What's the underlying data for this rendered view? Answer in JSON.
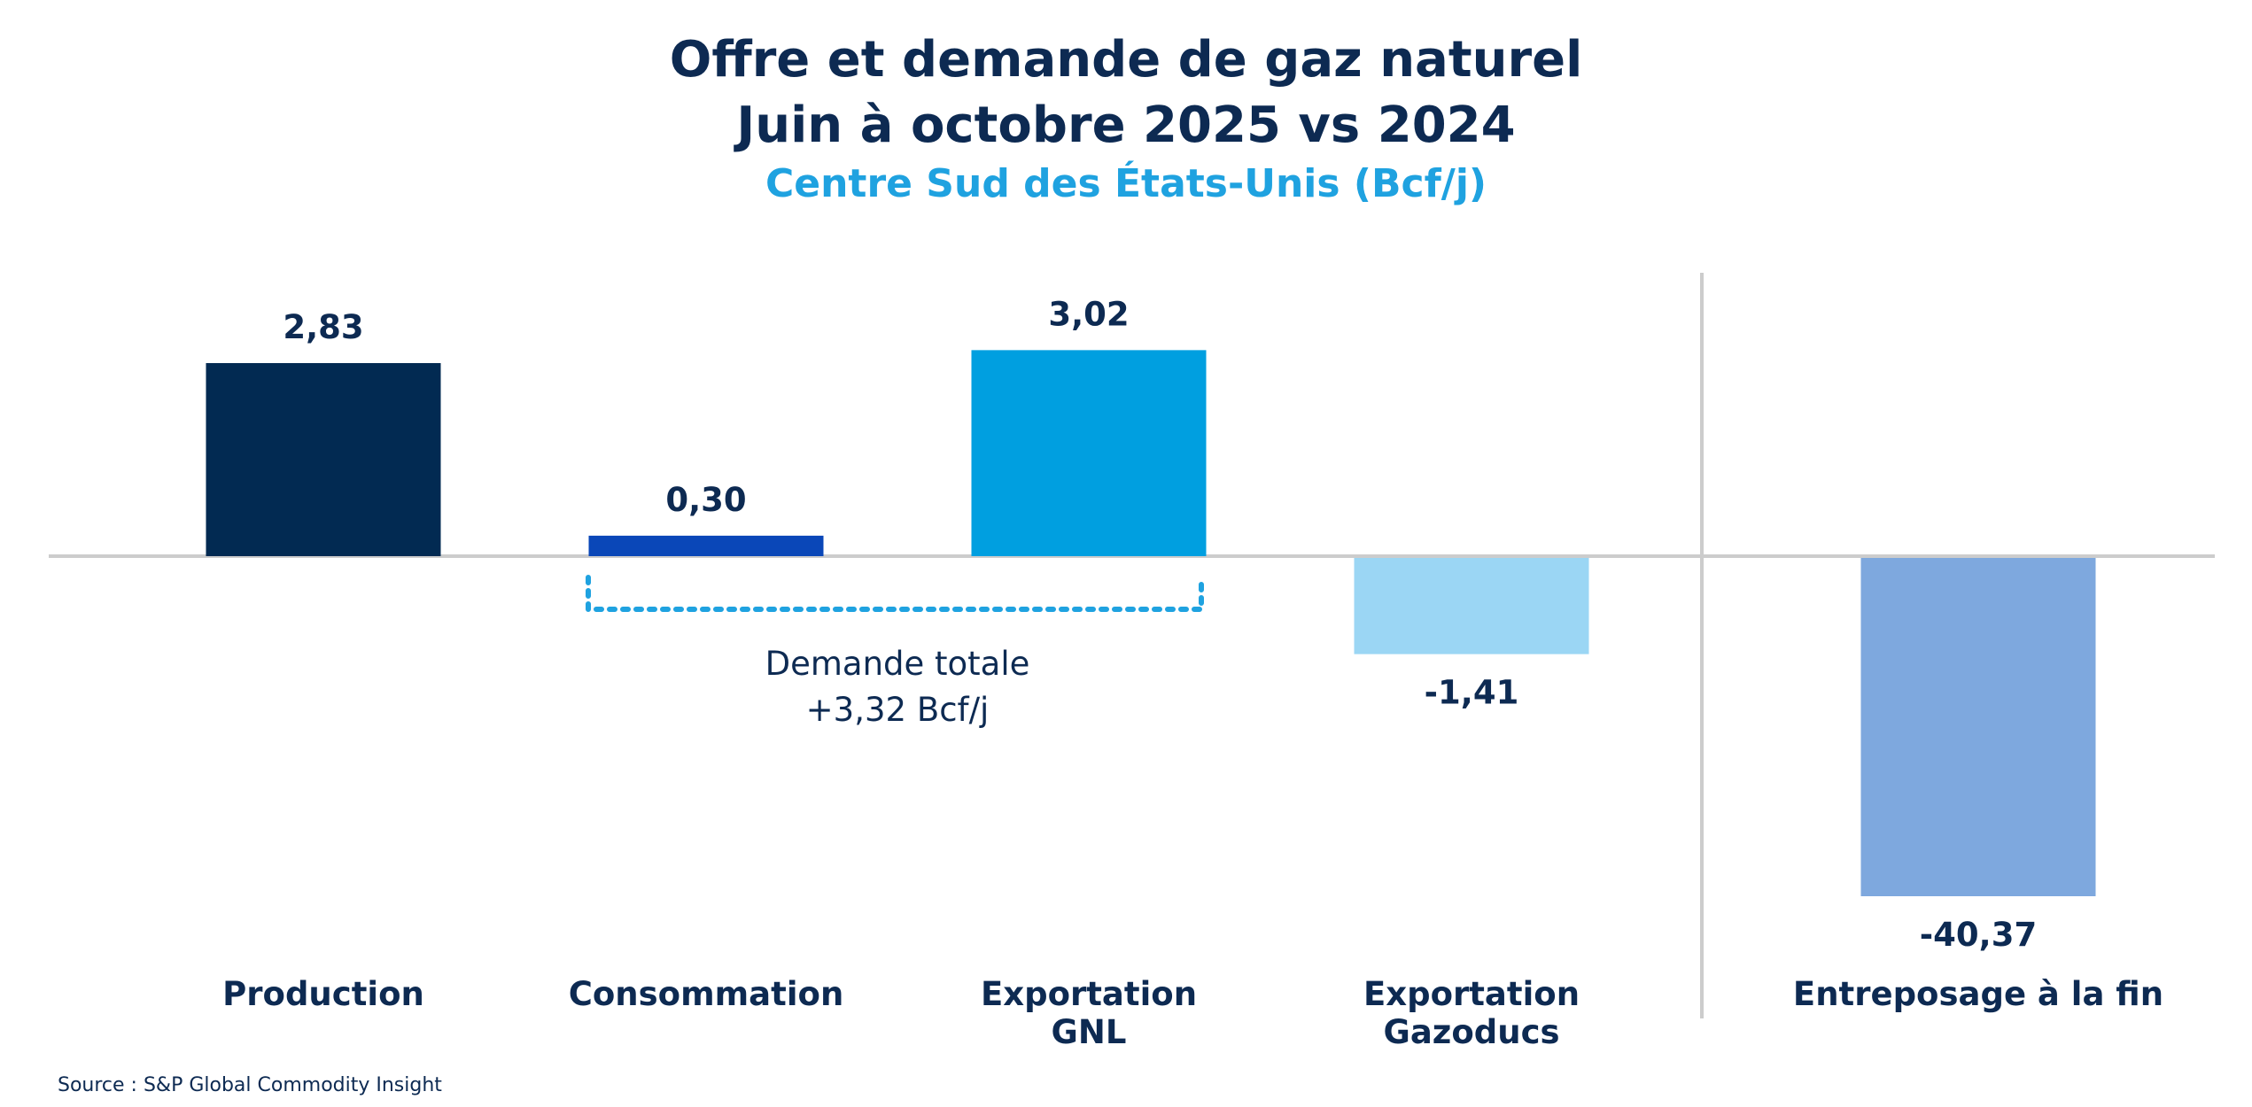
{
  "chart_data": {
    "type": "bar",
    "title_lines": [
      "Offre et demande de gaz naturel",
      "Juin à octobre 2025 vs 2024"
    ],
    "subtitle": "Centre Sud des États-Unis (Bcf/j)",
    "categories": [
      [
        "Production"
      ],
      [
        "Consommation"
      ],
      [
        "Exportation",
        "GNL"
      ],
      [
        "Exportation",
        "Gazoducs"
      ],
      [
        "Entreposage à la fin"
      ]
    ],
    "values": [
      2.83,
      0.3,
      3.02,
      -1.41,
      -40.37
    ],
    "value_labels": [
      "2,83",
      "0,30",
      "3,02",
      "-1,41",
      "-40,37"
    ],
    "colors": [
      "#022a52",
      "#0a47b8",
      "#009fe0",
      "#9bd6f4",
      "#7ea8de"
    ],
    "annotation": {
      "lines": [
        "Demande totale",
        "+3,32 Bcf/j"
      ],
      "bracket_color": "#1fa2e0"
    },
    "source": "Source : S&P Global Commodity Insight",
    "xlabel": "",
    "ylabel": ""
  }
}
